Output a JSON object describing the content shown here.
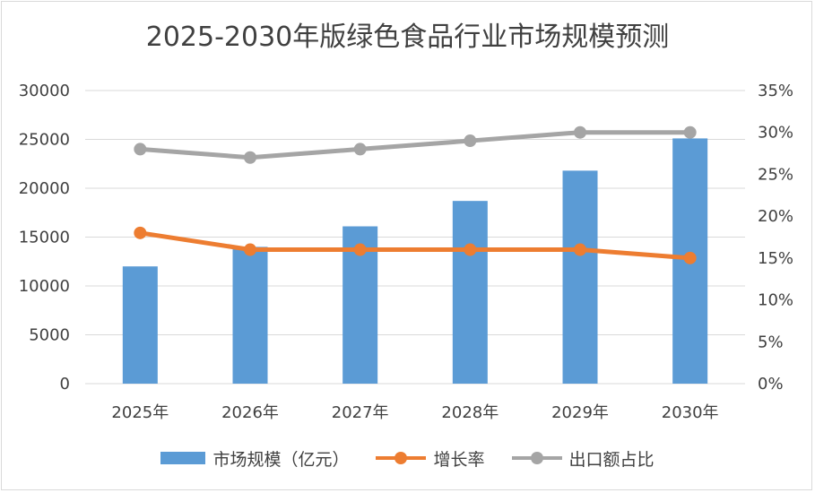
{
  "chart_data": {
    "type": "bar",
    "title": "2025-2030年版绿色食品行业市场规模预测",
    "categories": [
      "2025年",
      "2026年",
      "2027年",
      "2028年",
      "2029年",
      "2030年"
    ],
    "series": [
      {
        "name": "市场规模（亿元）",
        "type": "bar",
        "axis": "left",
        "color": "#5b9bd5",
        "values": [
          12000,
          14000,
          16100,
          18700,
          21800,
          25100
        ]
      },
      {
        "name": "增长率",
        "type": "line",
        "axis": "right",
        "color": "#ed7d31",
        "values": [
          0.18,
          0.16,
          0.16,
          0.16,
          0.16,
          0.15
        ]
      },
      {
        "name": "出口额占比",
        "type": "line",
        "axis": "right",
        "color": "#a5a5a5",
        "values": [
          0.28,
          0.27,
          0.28,
          0.29,
          0.3,
          0.3
        ]
      }
    ],
    "y_left": {
      "min": 0,
      "max": 30000,
      "step": 5000,
      "ticks": [
        "0",
        "5000",
        "10000",
        "15000",
        "20000",
        "25000",
        "30000"
      ]
    },
    "y_right": {
      "min": 0,
      "max": 0.35,
      "step": 0.05,
      "ticks": [
        "0%",
        "5%",
        "10%",
        "15%",
        "20%",
        "25%",
        "30%",
        "35%"
      ]
    },
    "grid": true,
    "legend_position": "bottom"
  }
}
